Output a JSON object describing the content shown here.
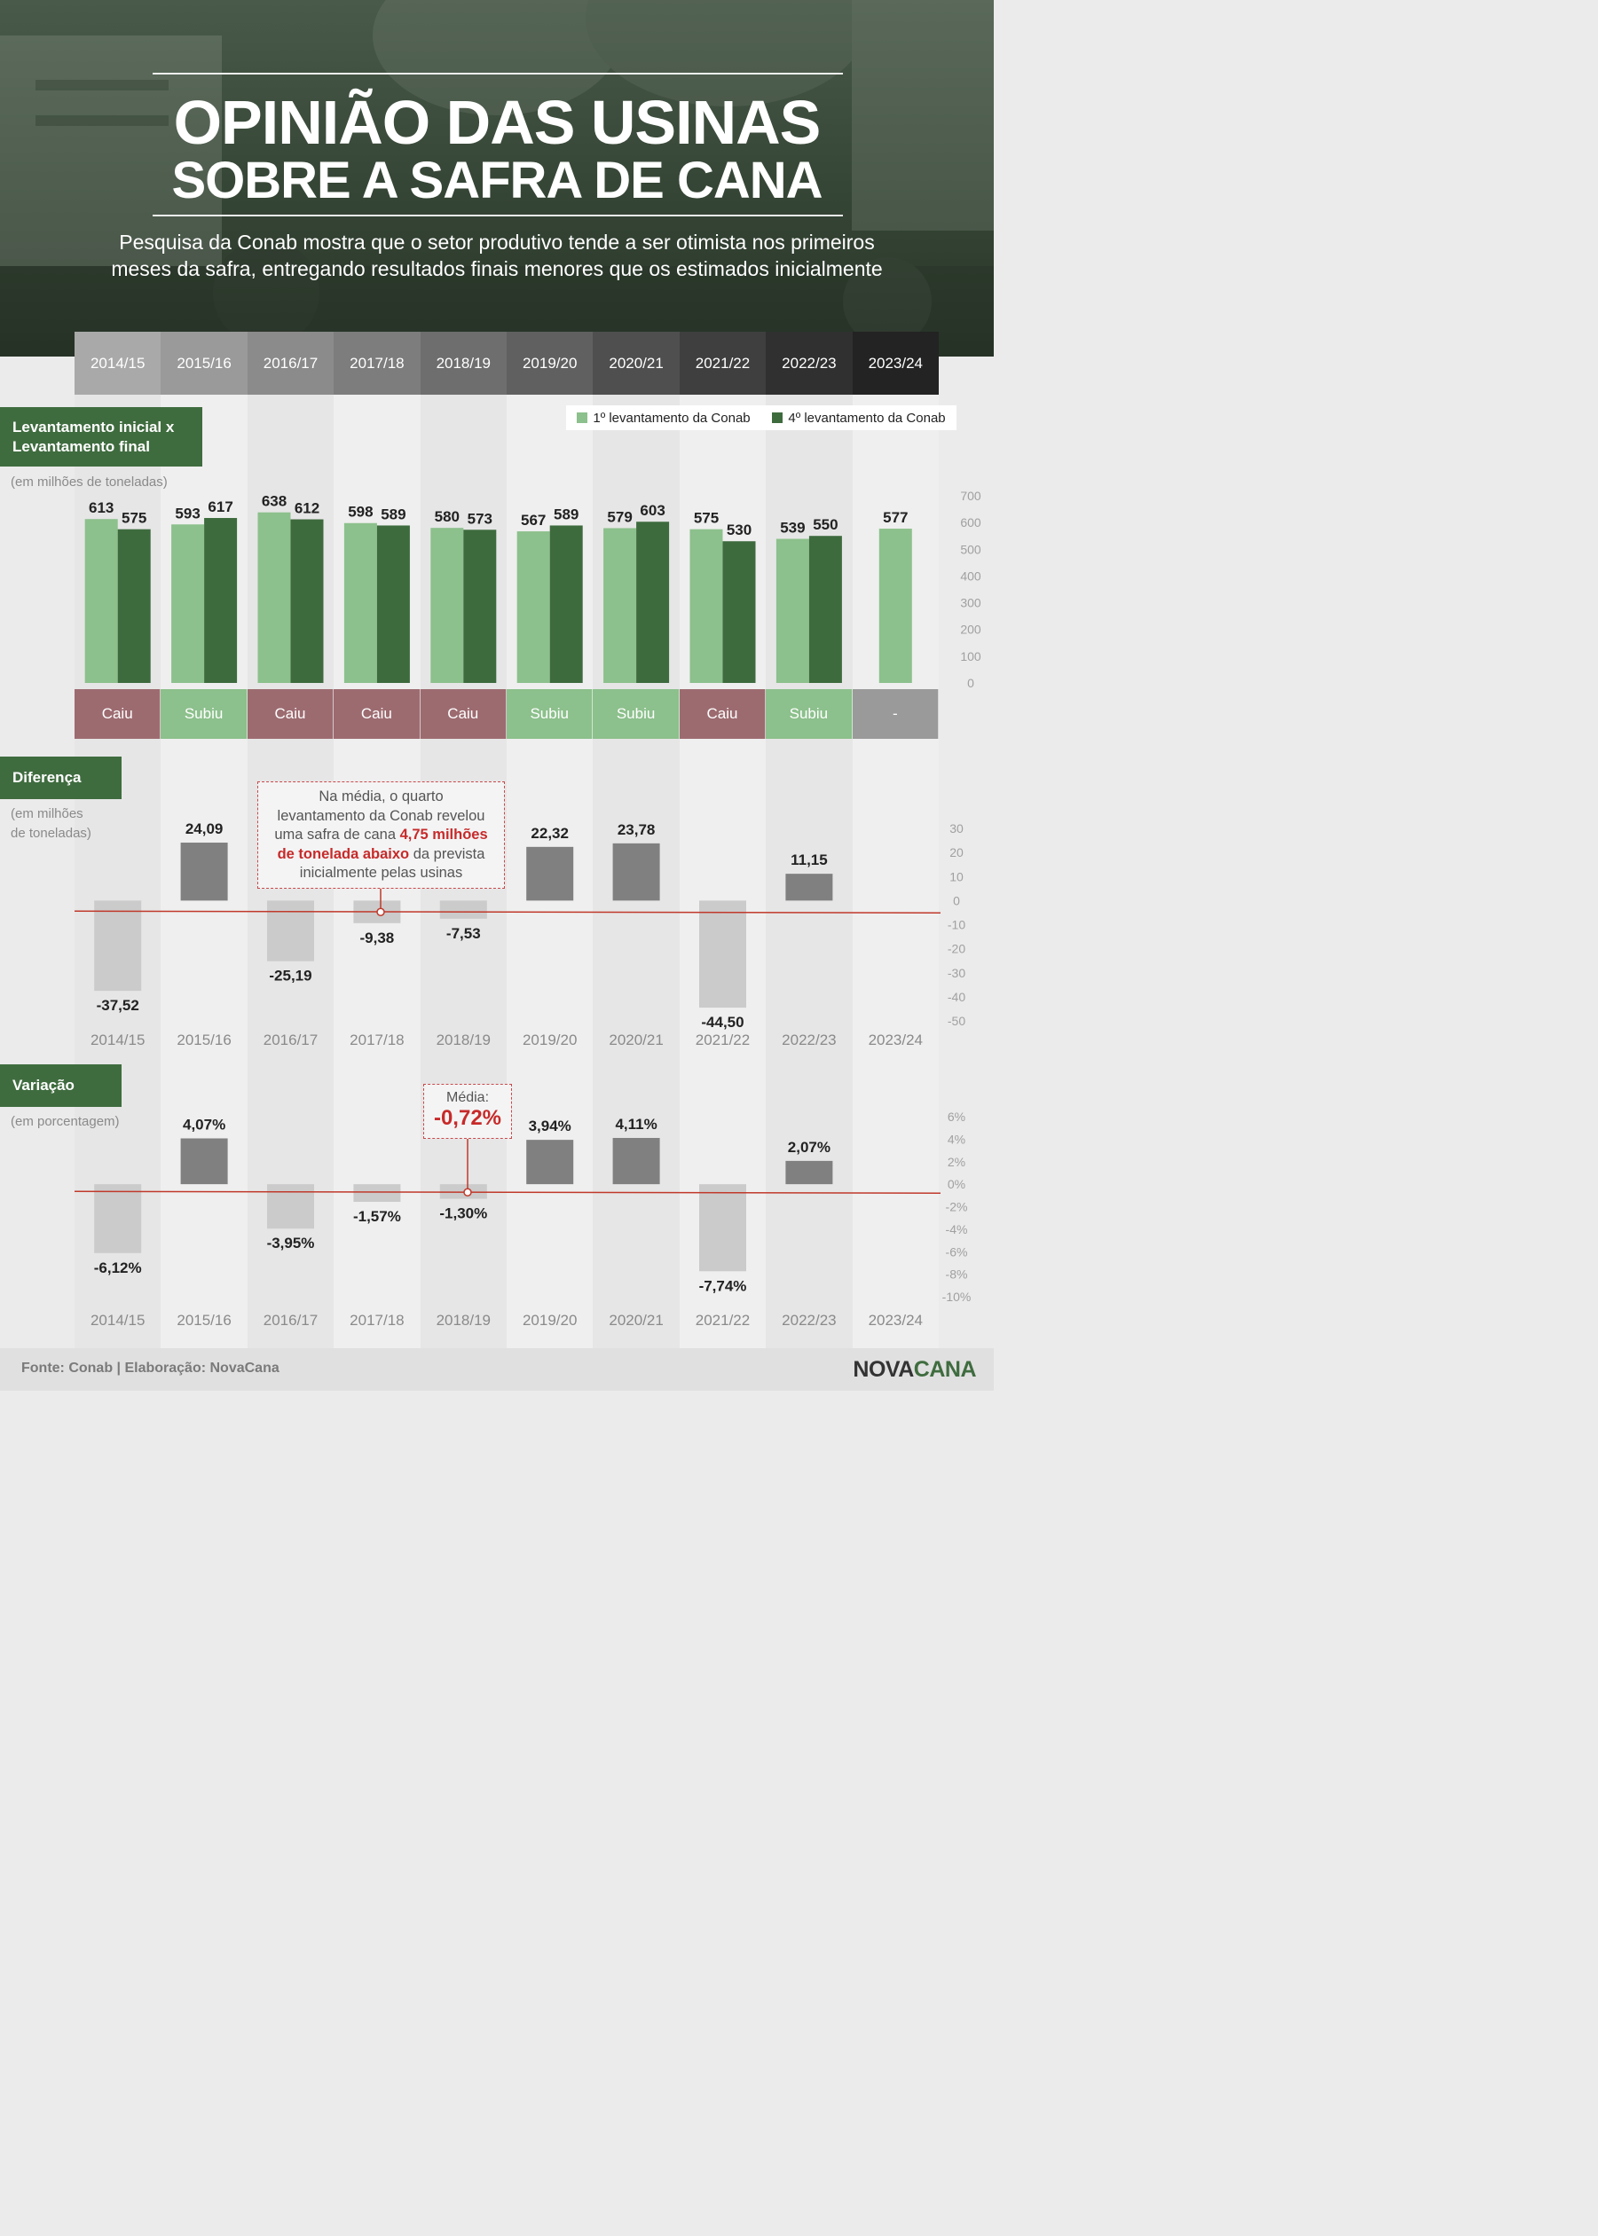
{
  "header": {
    "title_line1": "OPINIÃO DAS USINAS",
    "title_line2": "SOBRE A SAFRA DE CANA",
    "subtitle_line1": "Pesquisa da Conab mostra que o setor produtivo tende a ser otimista nos primeiros",
    "subtitle_line2": "meses da safra, entregando resultados finais menores que os estimados inicialmente"
  },
  "years": [
    "2014/15",
    "2015/16",
    "2016/17",
    "2017/18",
    "2018/19",
    "2019/20",
    "2020/21",
    "2021/22",
    "2022/23",
    "2023/24"
  ],
  "colors": {
    "first_survey": "#8cc08c",
    "fourth_survey": "#3e6b3e",
    "section_label": "#3f6c3f",
    "caiu": "#9c6b70",
    "subiu": "#8cc08c",
    "none": "#9a9a9a",
    "positive_bar": "#808080",
    "negative_bar": "#cbcbcb",
    "mean_line": "#c0392b"
  },
  "sections": {
    "levantamento": {
      "label_line1": "Levantamento inicial x",
      "label_line2": "Levantamento final",
      "unit": "(em milhões de toneladas)"
    },
    "diferenca": {
      "label": "Diferença",
      "unit_line1": "(em milhões",
      "unit_line2": "de toneladas)"
    },
    "variacao": {
      "label": "Variação",
      "unit": "(em porcentagem)"
    }
  },
  "legend": {
    "first": "1º levantamento da Conab",
    "fourth": "4º levantamento da Conab"
  },
  "status": [
    "Caiu",
    "Subiu",
    "Caiu",
    "Caiu",
    "Caiu",
    "Subiu",
    "Subiu",
    "Caiu",
    "Subiu",
    "-"
  ],
  "note": {
    "line1": "Na média, o quarto",
    "line2": "levantamento da Conab revelou",
    "line3_pre": "uma safra de cana ",
    "line3_bold": "4,75 milhões",
    "line4_bold": "de tonelada abaixo",
    "line4_post": " da prevista",
    "line5": "inicialmente pelas usinas"
  },
  "average": {
    "label": "Média:",
    "value": "-0,72%"
  },
  "footer": {
    "source": "Fonte: Conab | Elaboração: NovaCana",
    "brand_a": "NOVA",
    "brand_b": "CANA"
  },
  "chart_data": [
    {
      "type": "bar",
      "categories": [
        "2014/15",
        "2015/16",
        "2016/17",
        "2017/18",
        "2018/19",
        "2019/20",
        "2020/21",
        "2021/22",
        "2022/23",
        "2023/24"
      ],
      "series": [
        {
          "name": "1º levantamento da Conab",
          "values": [
            613,
            593,
            638,
            598,
            580,
            567,
            579,
            575,
            539,
            577
          ]
        },
        {
          "name": "4º levantamento da Conab",
          "values": [
            575,
            617,
            612,
            589,
            573,
            589,
            603,
            530,
            550,
            null
          ]
        }
      ],
      "ylim": [
        0,
        700
      ],
      "yticks": [
        0,
        100,
        200,
        300,
        400,
        500,
        600,
        700
      ],
      "legend": "top-right",
      "grid": false
    },
    {
      "type": "bar",
      "categories": [
        "2014/15",
        "2015/16",
        "2016/17",
        "2017/18",
        "2018/19",
        "2019/20",
        "2020/21",
        "2021/22",
        "2022/23",
        "2023/24"
      ],
      "values": [
        -37.52,
        24.09,
        -25.19,
        -9.38,
        -7.53,
        22.32,
        23.78,
        -44.5,
        11.15,
        null
      ],
      "labels": [
        "-37,52",
        "24,09",
        "-25,19",
        "-9,38",
        "-7,53",
        "22,32",
        "23,78",
        "-44,50",
        "11,15",
        ""
      ],
      "ylim": [
        -50,
        30
      ],
      "yticks": [
        30,
        20,
        10,
        0,
        -10,
        -20,
        -30,
        -40,
        -50
      ],
      "mean": -4.75,
      "grid": false
    },
    {
      "type": "bar",
      "categories": [
        "2014/15",
        "2015/16",
        "2016/17",
        "2017/18",
        "2018/19",
        "2019/20",
        "2020/21",
        "2021/22",
        "2022/23",
        "2023/24"
      ],
      "values": [
        -6.12,
        4.07,
        -3.95,
        -1.57,
        -1.3,
        3.94,
        4.11,
        -7.74,
        2.07,
        null
      ],
      "labels": [
        "-6,12%",
        "4,07%",
        "-3,95%",
        "-1,57%",
        "-1,30%",
        "3,94%",
        "4,11%",
        "-7,74%",
        "2,07%",
        ""
      ],
      "ylim": [
        -10,
        6
      ],
      "yticks": [
        "6%",
        "4%",
        "2%",
        "0%",
        "-2%",
        "-4%",
        "-6%",
        "-8%",
        "-10%"
      ],
      "ytick_values": [
        6,
        4,
        2,
        0,
        -2,
        -4,
        -6,
        -8,
        -10
      ],
      "mean": -0.72,
      "grid": false
    }
  ]
}
